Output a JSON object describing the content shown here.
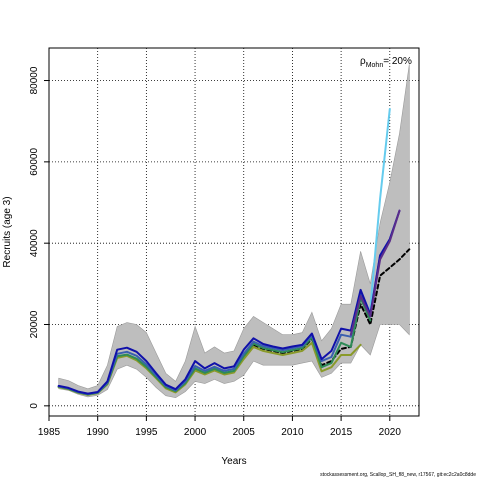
{
  "chart_data": {
    "type": "line",
    "xlabel": "Years",
    "ylabel": "Recruits (age 3)",
    "xlim": [
      1985,
      2023
    ],
    "ylim": [
      -2500,
      88000
    ],
    "x_ticks": [
      1985,
      1990,
      1995,
      2000,
      2005,
      2010,
      2015,
      2020
    ],
    "y_ticks": [
      0,
      20000,
      40000,
      60000,
      80000
    ],
    "grid": true,
    "annotation": {
      "rho": "ρ",
      "subscript": "Mohn",
      "text": "= 20%"
    },
    "band": {
      "x": [
        1986,
        1987,
        1988,
        1989,
        1990,
        1991,
        1992,
        1993,
        1994,
        1995,
        1996,
        1997,
        1998,
        1999,
        2000,
        2001,
        2002,
        2003,
        2004,
        2005,
        2006,
        2007,
        2008,
        2009,
        2010,
        2011,
        2012,
        2013,
        2014,
        2015,
        2016,
        2017,
        2018,
        2019,
        2020,
        2021,
        2022
      ],
      "upper": [
        6800,
        6200,
        5000,
        4200,
        5000,
        10000,
        19500,
        20500,
        20000,
        18000,
        13000,
        8000,
        6000,
        11000,
        19500,
        13000,
        14500,
        13000,
        13500,
        19000,
        22000,
        20500,
        19000,
        17500,
        17500,
        18000,
        23000,
        16000,
        19000,
        25000,
        25000,
        38000,
        30000,
        45000,
        55000,
        67000,
        84000
      ],
      "lower": [
        4200,
        3800,
        2800,
        2200,
        2600,
        4000,
        9000,
        10000,
        9000,
        7000,
        4500,
        2500,
        2000,
        3500,
        6000,
        5500,
        6500,
        5500,
        6000,
        7500,
        11000,
        10000,
        10000,
        10000,
        10000,
        10500,
        11000,
        7000,
        8000,
        10500,
        10500,
        15000,
        12500,
        20000,
        20000,
        20000,
        17500
      ]
    },
    "series": [
      {
        "color": "#000000",
        "dashed": true,
        "x": [
          1986,
          1987,
          1988,
          1989,
          1990,
          1991,
          1992,
          1993,
          1994,
          1995,
          1996,
          1997,
          1998,
          1999,
          2000,
          2001,
          2002,
          2003,
          2004,
          2005,
          2006,
          2007,
          2008,
          2009,
          2010,
          2011,
          2012,
          2013,
          2014,
          2015,
          2016,
          2017,
          2018,
          2019,
          2020,
          2021,
          2022
        ],
        "values": [
          4700,
          4200,
          3300,
          2800,
          3200,
          5500,
          12000,
          12500,
          11500,
          9500,
          7000,
          4500,
          3500,
          5500,
          9000,
          8000,
          9000,
          8000,
          8500,
          12000,
          15000,
          14000,
          13500,
          13000,
          13500,
          14000,
          16500,
          10000,
          11000,
          14000,
          14500,
          25000,
          20000,
          32000,
          34000,
          36000,
          38500
        ]
      },
      {
        "color": "#8a9a2a",
        "dashed": false,
        "x": [
          1986,
          1987,
          1988,
          1989,
          1990,
          1991,
          1992,
          1993,
          1994,
          1995,
          1996,
          1997,
          1998,
          1999,
          2000,
          2001,
          2002,
          2003,
          2004,
          2005,
          2006,
          2007,
          2008,
          2009,
          2010,
          2011,
          2012,
          2013,
          2014,
          2015,
          2016,
          2017
        ],
        "values": [
          4600,
          4100,
          3200,
          2700,
          3100,
          5300,
          11800,
          12300,
          11200,
          9200,
          6800,
          4300,
          3300,
          5300,
          8700,
          7700,
          8700,
          7700,
          8200,
          11500,
          14500,
          13500,
          13000,
          12500,
          13000,
          13500,
          15500,
          8500,
          9500,
          12500,
          12500,
          15000
        ]
      },
      {
        "color": "#2e8b57",
        "dashed": false,
        "x": [
          1986,
          1987,
          1988,
          1989,
          1990,
          1991,
          1992,
          1993,
          1994,
          1995,
          1996,
          1997,
          1998,
          1999,
          2000,
          2001,
          2002,
          2003,
          2004,
          2005,
          2006,
          2007,
          2008,
          2009,
          2010,
          2011,
          2012,
          2013,
          2014,
          2015,
          2016,
          2017,
          2018
        ],
        "values": [
          4700,
          4200,
          3300,
          2800,
          3200,
          5500,
          12200,
          12600,
          11600,
          9600,
          7100,
          4600,
          3600,
          5600,
          9200,
          8100,
          9100,
          8100,
          8600,
          12200,
          15300,
          14200,
          13700,
          13200,
          13700,
          14200,
          16800,
          9500,
          10500,
          15500,
          14500,
          26500,
          21000
        ]
      },
      {
        "color": "#3a5fb0",
        "dashed": false,
        "x": [
          1986,
          1987,
          1988,
          1989,
          1990,
          1991,
          1992,
          1993,
          1994,
          1995,
          1996,
          1997,
          1998,
          1999,
          2000,
          2001,
          2002,
          2003,
          2004,
          2005,
          2006,
          2007,
          2008,
          2009,
          2010,
          2011,
          2012,
          2013,
          2014,
          2015,
          2016,
          2017,
          2018,
          2019
        ],
        "values": [
          4800,
          4300,
          3400,
          2900,
          3300,
          5700,
          12800,
          13300,
          12300,
          10200,
          7500,
          4900,
          3800,
          6000,
          9800,
          8600,
          9600,
          8600,
          9100,
          12800,
          15800,
          14700,
          14200,
          13700,
          14200,
          14700,
          17300,
          11000,
          12000,
          17500,
          17000,
          28000,
          22000,
          37000
        ]
      },
      {
        "color": "#66ccee",
        "dashed": false,
        "x": [
          2018,
          2019,
          2020
        ],
        "values": [
          24000,
          51000,
          73000
        ]
      },
      {
        "color": "#1010aa",
        "dashed": false,
        "x": [
          1986,
          1987,
          1988,
          1989,
          1990,
          1991,
          1992,
          1993,
          1994,
          1995,
          1996,
          1997,
          1998,
          1999,
          2000,
          2001,
          2002,
          2003,
          2004,
          2005,
          2006,
          2007,
          2008,
          2009,
          2010,
          2011,
          2012,
          2013,
          2014,
          2015,
          2016,
          2017,
          2018,
          2019,
          2020,
          2021
        ],
        "values": [
          4900,
          4400,
          3500,
          3000,
          3400,
          6000,
          13800,
          14300,
          13300,
          11000,
          8000,
          5200,
          4100,
          6500,
          11000,
          9200,
          10500,
          9200,
          9700,
          13800,
          16600,
          15200,
          14600,
          14100,
          14600,
          15000,
          17800,
          11500,
          13500,
          19000,
          18500,
          28500,
          22500,
          37000,
          41000,
          48000
        ]
      },
      {
        "color": "#5a2d8a",
        "dashed": false,
        "x": [
          2016,
          2017,
          2018,
          2019,
          2020,
          2021
        ],
        "values": [
          17500,
          27000,
          22000,
          36000,
          40500,
          48000
        ]
      }
    ]
  },
  "footer": "stockassessment.org, Scallop_SH_fl8_new, r17567, git:ec2c2a0c8dde"
}
